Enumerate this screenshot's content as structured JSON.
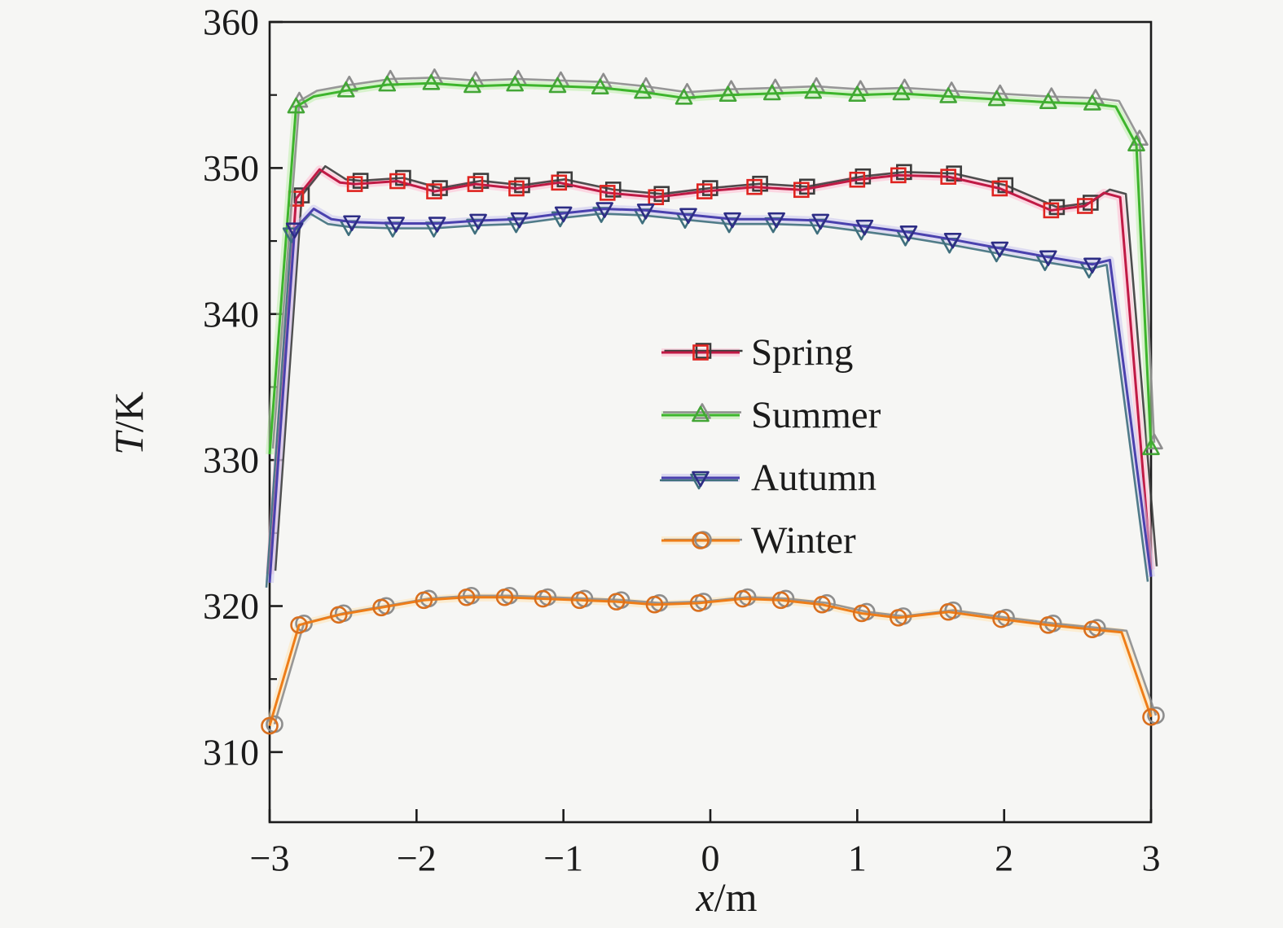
{
  "figure": {
    "background": "#f6f6f4",
    "frame_color": "#1b1b1b",
    "text_color": "#1b1b1b"
  },
  "chart_data": {
    "type": "line",
    "title": "",
    "xlabel": "x/m",
    "ylabel": "T/K",
    "xlim": [
      -3,
      3
    ],
    "ylim": [
      305.2,
      360
    ],
    "x_ticks": [
      -3,
      -2,
      -1,
      0,
      1,
      2,
      3
    ],
    "x_tick_labels": [
      "−3",
      "−2",
      "−1",
      "0",
      "1",
      "2",
      "3"
    ],
    "y_ticks": [
      310,
      320,
      330,
      340,
      350,
      360
    ],
    "y_tick_labels": [
      "310",
      "320",
      "330",
      "340",
      "350",
      "360"
    ],
    "y_minor_ticks": [
      315,
      325,
      335,
      345,
      355
    ],
    "grid": false,
    "legend_position": "center",
    "series": [
      {
        "name": "Spring",
        "color": "#c01a45",
        "marker": "square",
        "marker_color": "#df2420",
        "halo_color": "#ffbcd2",
        "twin_color": "#3c3c3c",
        "points": [
          [
            -3.0,
            322.2,
            0
          ],
          [
            -2.82,
            347.9,
            1
          ],
          [
            -2.66,
            349.9,
            0
          ],
          [
            -2.52,
            349.0,
            0
          ],
          [
            -2.42,
            348.9,
            1
          ],
          [
            -2.13,
            349.1,
            1
          ],
          [
            -1.88,
            348.4,
            1
          ],
          [
            -1.6,
            348.9,
            1
          ],
          [
            -1.32,
            348.6,
            1
          ],
          [
            -1.03,
            349.0,
            1
          ],
          [
            -0.7,
            348.3,
            1
          ],
          [
            -0.37,
            348.0,
            1
          ],
          [
            -0.04,
            348.4,
            1
          ],
          [
            0.3,
            348.7,
            1
          ],
          [
            0.62,
            348.5,
            1
          ],
          [
            1.0,
            349.2,
            1
          ],
          [
            1.28,
            349.5,
            1
          ],
          [
            1.62,
            349.4,
            1
          ],
          [
            1.97,
            348.6,
            1
          ],
          [
            2.32,
            347.1,
            1
          ],
          [
            2.55,
            347.4,
            1
          ],
          [
            2.68,
            348.3,
            0
          ],
          [
            2.79,
            348.0,
            0
          ],
          [
            3.0,
            322.5,
            0
          ]
        ]
      },
      {
        "name": "Summer",
        "color": "#3db52c",
        "marker": "triangle-up",
        "marker_color": "#43a636",
        "halo_color": "#bdefac",
        "twin_color": "#8d8d8d",
        "points": [
          [
            -3.0,
            330.4,
            0
          ],
          [
            -2.82,
            354.2,
            1
          ],
          [
            -2.7,
            354.9,
            0
          ],
          [
            -2.48,
            355.3,
            1
          ],
          [
            -2.2,
            355.7,
            1
          ],
          [
            -1.9,
            355.8,
            1
          ],
          [
            -1.62,
            355.6,
            1
          ],
          [
            -1.33,
            355.7,
            1
          ],
          [
            -1.04,
            355.6,
            1
          ],
          [
            -0.75,
            355.5,
            1
          ],
          [
            -0.46,
            355.2,
            1
          ],
          [
            -0.18,
            354.8,
            1
          ],
          [
            0.12,
            355.0,
            1
          ],
          [
            0.42,
            355.1,
            1
          ],
          [
            0.7,
            355.2,
            1
          ],
          [
            1.0,
            355.0,
            1
          ],
          [
            1.3,
            355.1,
            1
          ],
          [
            1.62,
            354.9,
            1
          ],
          [
            1.95,
            354.7,
            1
          ],
          [
            2.3,
            354.5,
            1
          ],
          [
            2.6,
            354.4,
            1
          ],
          [
            2.76,
            354.2,
            0
          ],
          [
            2.9,
            351.6,
            1
          ],
          [
            3.0,
            330.8,
            1
          ]
        ]
      },
      {
        "name": "Autumn",
        "color": "#4a41ae",
        "marker": "triangle-down",
        "marker_color": "#2d2d85",
        "halo_color": "#c9c5ef",
        "twin_color": "#3f6f7d",
        "points": [
          [
            -3.0,
            321.6,
            0
          ],
          [
            -2.83,
            345.8,
            1
          ],
          [
            -2.7,
            347.2,
            0
          ],
          [
            -2.58,
            346.5,
            0
          ],
          [
            -2.44,
            346.3,
            1
          ],
          [
            -2.14,
            346.2,
            1
          ],
          [
            -1.86,
            346.2,
            1
          ],
          [
            -1.58,
            346.4,
            1
          ],
          [
            -1.3,
            346.5,
            1
          ],
          [
            -1.0,
            346.9,
            1
          ],
          [
            -0.72,
            347.2,
            1
          ],
          [
            -0.44,
            347.1,
            1
          ],
          [
            -0.15,
            346.8,
            1
          ],
          [
            0.15,
            346.5,
            1
          ],
          [
            0.45,
            346.5,
            1
          ],
          [
            0.75,
            346.4,
            1
          ],
          [
            1.05,
            346.0,
            1
          ],
          [
            1.35,
            345.6,
            1
          ],
          [
            1.65,
            345.1,
            1
          ],
          [
            1.97,
            344.5,
            1
          ],
          [
            2.3,
            343.9,
            1
          ],
          [
            2.6,
            343.4,
            1
          ],
          [
            2.72,
            343.7,
            0
          ],
          [
            3.0,
            322.0,
            0
          ]
        ]
      },
      {
        "name": "Winter",
        "color": "#ee7d18",
        "marker": "circle",
        "marker_color": "#d96f1e",
        "halo_color": "#ffe3b4",
        "twin_color": "#8d8d8d",
        "points": [
          [
            -3.0,
            311.8,
            1
          ],
          [
            -2.8,
            318.7,
            1
          ],
          [
            -2.53,
            319.4,
            1
          ],
          [
            -2.24,
            319.9,
            1
          ],
          [
            -1.95,
            320.4,
            1
          ],
          [
            -1.66,
            320.6,
            1
          ],
          [
            -1.4,
            320.6,
            1
          ],
          [
            -1.14,
            320.5,
            1
          ],
          [
            -0.89,
            320.4,
            1
          ],
          [
            -0.64,
            320.3,
            1
          ],
          [
            -0.38,
            320.1,
            1
          ],
          [
            -0.08,
            320.2,
            1
          ],
          [
            0.22,
            320.5,
            1
          ],
          [
            0.48,
            320.4,
            1
          ],
          [
            0.76,
            320.1,
            1
          ],
          [
            1.03,
            319.5,
            1
          ],
          [
            1.28,
            319.2,
            1
          ],
          [
            1.62,
            319.6,
            1
          ],
          [
            1.98,
            319.1,
            1
          ],
          [
            2.3,
            318.7,
            1
          ],
          [
            2.6,
            318.4,
            1
          ],
          [
            2.8,
            318.2,
            0
          ],
          [
            3.0,
            312.4,
            1
          ]
        ]
      }
    ]
  }
}
